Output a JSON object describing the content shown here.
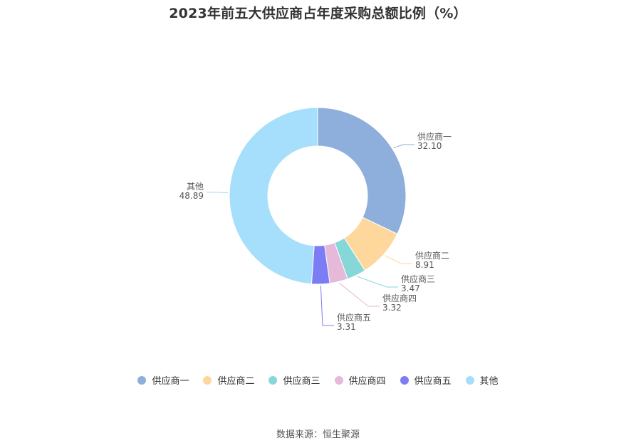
{
  "title": "2023年前五大供应商占年度采购总额比例（%）",
  "source": "数据来源：恒生聚源",
  "chart_data": {
    "type": "pie",
    "variant": "donut",
    "title": "2023年前五大供应商占年度采购总额比例（%）",
    "categories": [
      "供应商一",
      "供应商二",
      "供应商三",
      "供应商四",
      "供应商五",
      "其他"
    ],
    "values": [
      32.1,
      8.91,
      3.47,
      3.32,
      3.31,
      48.89
    ],
    "value_labels": [
      "32.10",
      "8.91",
      "3.47",
      "3.32",
      "3.31",
      "48.89"
    ],
    "colors": [
      "#8eaedb",
      "#fed79c",
      "#87d7d9",
      "#e5b9da",
      "#7c7cf4",
      "#a6dffb"
    ],
    "legend_position": "bottom"
  }
}
